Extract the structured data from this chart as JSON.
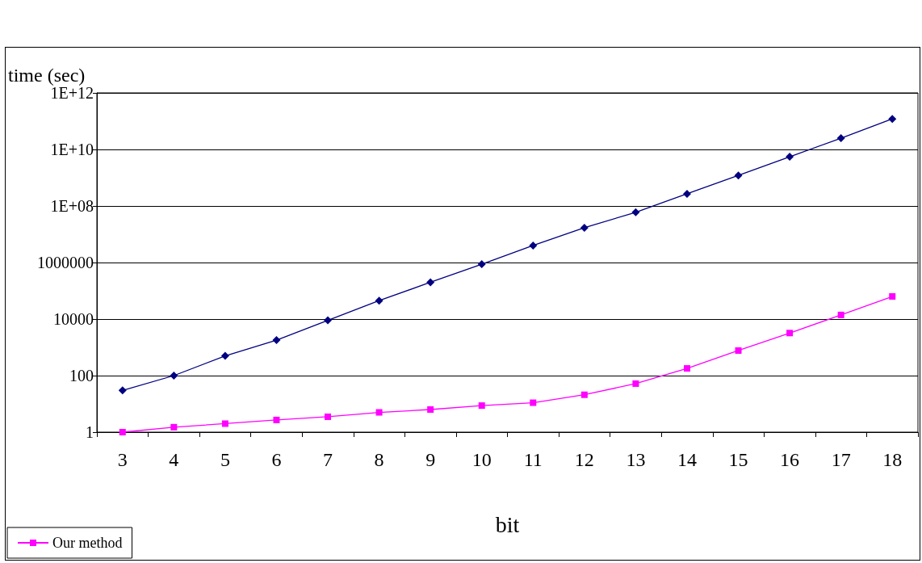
{
  "chart_data": {
    "type": "line",
    "xlabel": "bit",
    "ylabel": "time (sec)",
    "categories": [
      "3",
      "4",
      "5",
      "6",
      "7",
      "8",
      "9",
      "10",
      "11",
      "12",
      "13",
      "14",
      "15",
      "16",
      "17",
      "18"
    ],
    "series": [
      {
        "color": "#000080",
        "marker": "diamond",
        "values": [
          30,
          100,
          500,
          1800,
          9000,
          45000,
          200000,
          870000,
          4000000,
          17000000,
          60000000,
          270000000,
          1200000000,
          5500000000,
          25000000000,
          120000000000
        ]
      },
      {
        "name": "Our method",
        "color": "#ff00ff",
        "marker": "square",
        "values": [
          1,
          1.5,
          2,
          2.7,
          3.5,
          5,
          6.3,
          8.7,
          11,
          21,
          52,
          180,
          770,
          3200,
          14000,
          63000
        ]
      }
    ],
    "log": "y",
    "ylim": [
      1,
      1000000000000
    ],
    "yticks": [
      1,
      100,
      10000,
      1000000,
      {
        "value": 100000000,
        "label": "1E+08"
      },
      {
        "value": 10000000000,
        "label": "1E+10"
      },
      {
        "value": 1000000000000,
        "label": "1E+12"
      }
    ],
    "grid": "y",
    "legend": "bottom left",
    "line_style": "solid"
  }
}
